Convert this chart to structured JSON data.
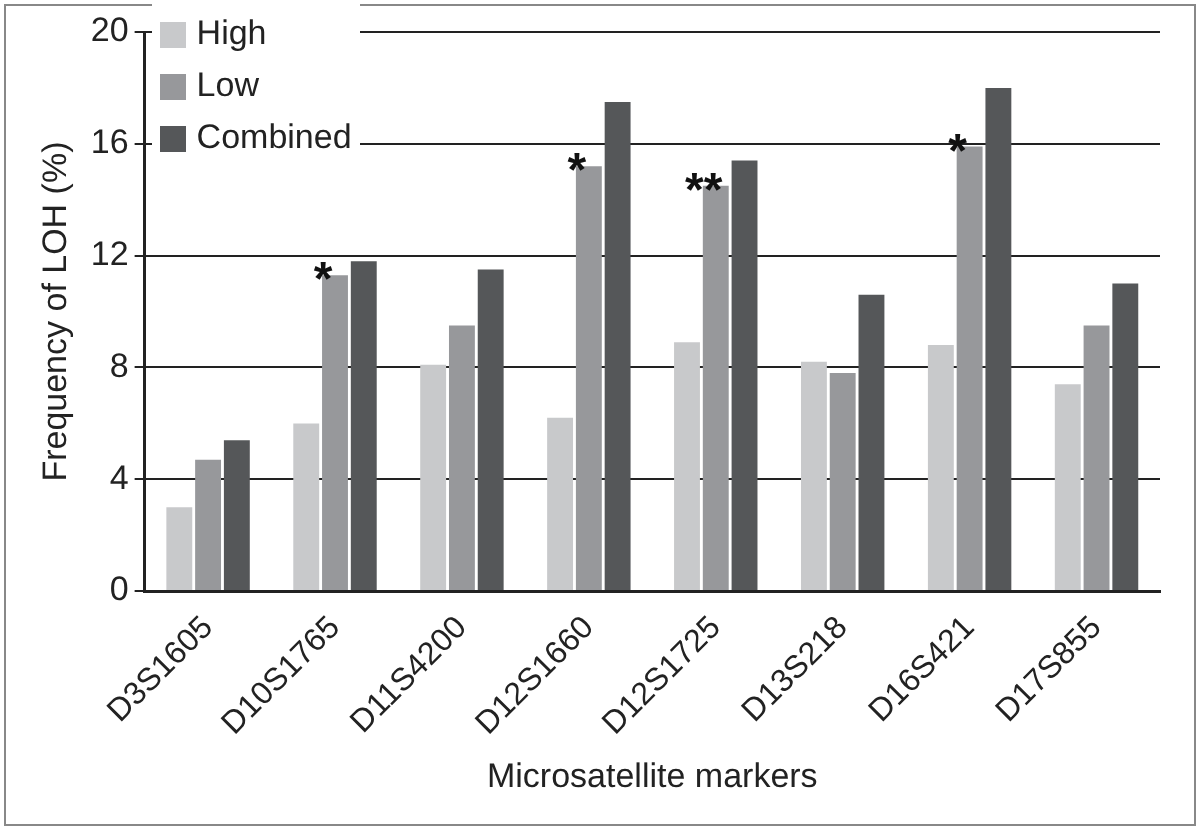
{
  "chart_data": {
    "type": "bar",
    "xlabel": "Microsatellite markers",
    "ylabel": "Frequency of LOH (%)",
    "categories": [
      "D3S1605",
      "D10S1765",
      "D11S4200",
      "D12S1660",
      "D12S1725",
      "D13S218",
      "D16S421",
      "D17S855"
    ],
    "series": [
      {
        "name": "High",
        "color": "#c8c9cb",
        "values": [
          3.0,
          6.0,
          8.1,
          6.2,
          8.9,
          8.2,
          8.8,
          7.4
        ]
      },
      {
        "name": "Low",
        "color": "#97989b",
        "values": [
          4.7,
          11.3,
          9.5,
          15.2,
          14.5,
          7.8,
          15.9,
          9.5
        ]
      },
      {
        "name": "Combined",
        "color": "#555759",
        "values": [
          5.4,
          11.8,
          11.5,
          17.5,
          15.4,
          10.6,
          18.0,
          11.0
        ]
      }
    ],
    "ylim": [
      0,
      20
    ],
    "yticks": [
      0,
      4,
      8,
      12,
      16,
      20
    ],
    "grid": "y",
    "legend": "top left",
    "annotations": [
      {
        "text": "*",
        "x": "D10S1765",
        "y": 11.3
      },
      {
        "text": "*",
        "x": "D12S1660",
        "y": 15.2
      },
      {
        "text": "**",
        "x": "D12S1725",
        "y": 14.5
      },
      {
        "text": "*",
        "x": "D16S421",
        "y": 15.9
      }
    ]
  }
}
